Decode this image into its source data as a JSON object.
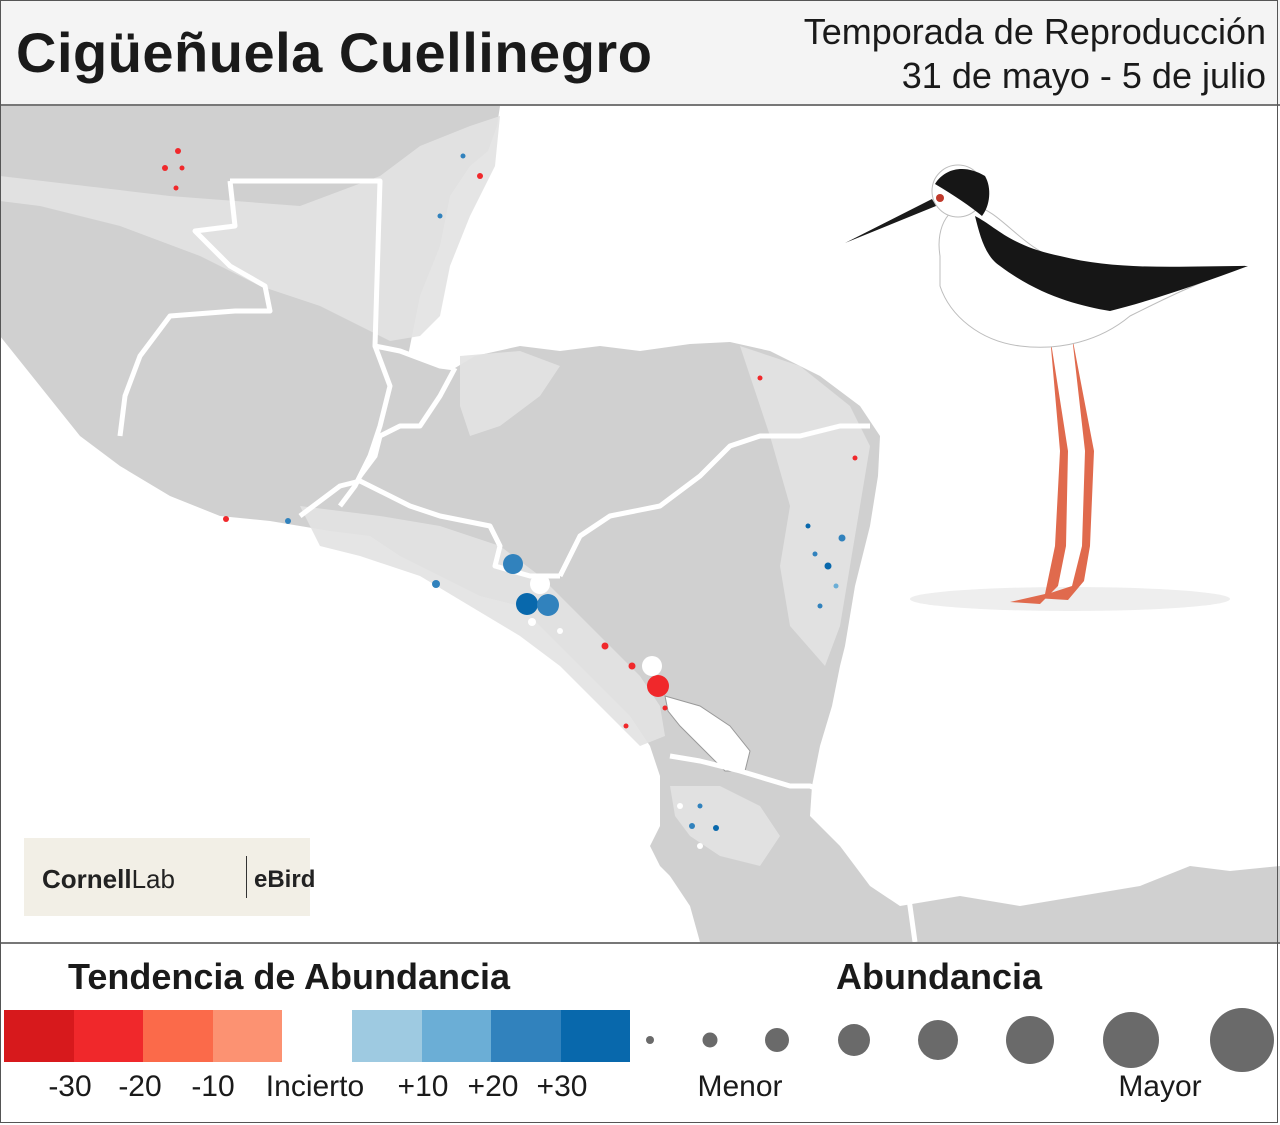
{
  "header": {
    "title": "Cigüeñuela Cuellinegro",
    "season_name": "Temporada de Reproducción",
    "season_dates": "31 de mayo - 5 de julio"
  },
  "logo": {
    "brand_bold": "Cornell",
    "brand_regular": "Lab",
    "partner": "eBird"
  },
  "legend": {
    "trend": {
      "title": "Tendencia de Abundancia",
      "colors": [
        "#d7191c",
        "#f0282b",
        "#fb6a4a",
        "#fc9272",
        "#ffffff",
        "#9ecae1",
        "#6baed6",
        "#3182bd",
        "#0868ac"
      ],
      "labels": [
        "-30",
        "-20",
        "-10",
        "Incierto",
        "+10",
        "+20",
        "+30"
      ]
    },
    "abundance": {
      "title": "Abundancia",
      "min_label": "Menor",
      "max_label": "Mayor",
      "levels": 8
    }
  },
  "colors": {
    "land": "#d0d0d0",
    "land_range": "#e2e2e2",
    "border": "#ffffff",
    "sea": "#ffffff",
    "abundance_dot": "#6a6a6a"
  }
}
